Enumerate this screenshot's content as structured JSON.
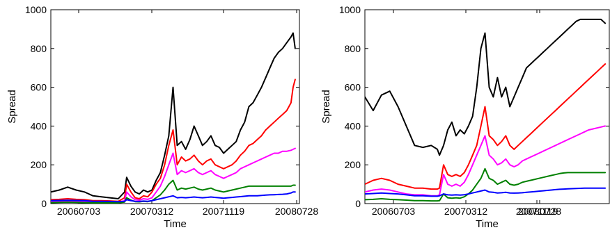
{
  "chart_data": [
    {
      "type": "line",
      "xlabel": "Time",
      "ylabel": "Spread",
      "ylim": [
        0,
        1000
      ],
      "yticks": [
        "0",
        "200",
        "400",
        "600",
        "800",
        "1000"
      ],
      "xticks": [
        "20060703",
        "20070312",
        "20071119",
        "20080728"
      ],
      "grid": false,
      "x_index": [
        0,
        20,
        40,
        60,
        80,
        100,
        120,
        140,
        160,
        175,
        180,
        190,
        200,
        210,
        220,
        230,
        240,
        250,
        260,
        270,
        280,
        290,
        300,
        310,
        320,
        330,
        340,
        350,
        360,
        370,
        380,
        390,
        400,
        410,
        420,
        430,
        440,
        450,
        460,
        470,
        480,
        490,
        500,
        510,
        520,
        530,
        540,
        550,
        560,
        570,
        575,
        580
      ],
      "series": [
        {
          "color": "#000000",
          "values": [
            60,
            70,
            85,
            70,
            60,
            40,
            35,
            30,
            25,
            60,
            135,
            90,
            60,
            50,
            70,
            60,
            70,
            120,
            160,
            250,
            350,
            600,
            300,
            320,
            280,
            330,
            400,
            350,
            300,
            320,
            350,
            300,
            290,
            260,
            280,
            300,
            320,
            380,
            420,
            500,
            520,
            560,
            600,
            650,
            700,
            750,
            780,
            800,
            830,
            860,
            880,
            800
          ]
        },
        {
          "color": "#ff0000",
          "values": [
            20,
            22,
            25,
            22,
            20,
            15,
            15,
            14,
            12,
            30,
            100,
            60,
            30,
            25,
            40,
            35,
            60,
            100,
            130,
            200,
            300,
            380,
            200,
            240,
            220,
            230,
            250,
            220,
            200,
            220,
            230,
            200,
            190,
            180,
            190,
            200,
            220,
            250,
            270,
            300,
            310,
            330,
            350,
            380,
            400,
            420,
            440,
            460,
            480,
            520,
            600,
            640
          ]
        },
        {
          "color": "#ff00ff",
          "values": [
            10,
            12,
            14,
            12,
            10,
            8,
            8,
            8,
            7,
            15,
            60,
            35,
            20,
            18,
            25,
            22,
            30,
            60,
            90,
            140,
            200,
            260,
            150,
            170,
            160,
            170,
            180,
            160,
            150,
            160,
            170,
            150,
            140,
            130,
            140,
            150,
            160,
            180,
            190,
            200,
            210,
            220,
            230,
            240,
            250,
            260,
            260,
            270,
            270,
            275,
            280,
            285
          ]
        },
        {
          "color": "#008000",
          "values": [
            5,
            6,
            7,
            6,
            5,
            4,
            4,
            4,
            4,
            8,
            30,
            18,
            10,
            9,
            12,
            10,
            15,
            30,
            45,
            70,
            100,
            120,
            70,
            80,
            75,
            80,
            85,
            75,
            70,
            75,
            80,
            70,
            65,
            60,
            65,
            70,
            75,
            80,
            85,
            90,
            90,
            90,
            90,
            90,
            90,
            90,
            90,
            90,
            90,
            90,
            95,
            95
          ]
        },
        {
          "color": "#0000ff",
          "values": [
            15,
            16,
            17,
            16,
            15,
            12,
            12,
            11,
            10,
            12,
            20,
            15,
            12,
            11,
            13,
            12,
            15,
            20,
            25,
            30,
            35,
            40,
            30,
            32,
            30,
            32,
            34,
            32,
            30,
            32,
            34,
            32,
            30,
            28,
            30,
            32,
            34,
            36,
            38,
            40,
            40,
            40,
            42,
            44,
            45,
            46,
            47,
            48,
            50,
            55,
            60,
            60
          ]
        }
      ]
    },
    {
      "type": "line",
      "xlabel": "Time",
      "ylabel": "Spread",
      "ylim": [
        0,
        1000
      ],
      "yticks": [
        "0",
        "200",
        "400",
        "600",
        "800",
        "1000"
      ],
      "xticks": [
        "20060703",
        "20070312",
        "20071119",
        "20080728"
      ],
      "grid": false,
      "x_index": [
        0,
        20,
        40,
        60,
        80,
        100,
        120,
        140,
        160,
        175,
        180,
        190,
        200,
        210,
        220,
        230,
        240,
        250,
        260,
        270,
        280,
        290,
        300,
        310,
        320,
        330,
        340,
        350,
        360,
        370,
        380,
        390,
        400,
        410,
        420,
        430,
        440,
        450,
        460,
        470,
        480,
        490,
        500,
        510,
        520,
        530,
        540,
        550,
        560,
        570,
        575,
        580
      ],
      "series": [
        {
          "color": "#000000",
          "values": [
            550,
            480,
            560,
            580,
            500,
            400,
            300,
            290,
            300,
            280,
            250,
            300,
            380,
            420,
            350,
            380,
            360,
            400,
            450,
            600,
            800,
            880,
            600,
            550,
            650,
            550,
            600,
            500,
            550,
            600,
            650,
            700,
            720,
            740,
            760,
            780,
            800,
            820,
            840,
            860,
            880,
            900,
            920,
            940,
            950,
            950,
            950,
            950,
            950,
            950,
            940,
            930
          ]
        },
        {
          "color": "#ff0000",
          "values": [
            100,
            120,
            130,
            120,
            100,
            90,
            80,
            80,
            75,
            75,
            80,
            200,
            150,
            140,
            150,
            140,
            160,
            200,
            250,
            300,
            400,
            500,
            350,
            330,
            300,
            320,
            350,
            300,
            280,
            300,
            320,
            340,
            360,
            380,
            400,
            420,
            440,
            460,
            480,
            500,
            520,
            540,
            560,
            580,
            600,
            620,
            640,
            660,
            680,
            700,
            710,
            720
          ]
        },
        {
          "color": "#ff00ff",
          "values": [
            60,
            70,
            75,
            70,
            60,
            50,
            45,
            45,
            40,
            40,
            45,
            150,
            100,
            90,
            100,
            90,
            110,
            150,
            200,
            250,
            300,
            350,
            250,
            230,
            200,
            210,
            230,
            200,
            190,
            200,
            220,
            230,
            240,
            250,
            260,
            270,
            280,
            290,
            300,
            310,
            320,
            330,
            340,
            350,
            360,
            370,
            380,
            385,
            390,
            395,
            398,
            400
          ]
        },
        {
          "color": "#008000",
          "values": [
            20,
            22,
            25,
            22,
            20,
            18,
            15,
            15,
            14,
            14,
            15,
            50,
            30,
            28,
            30,
            28,
            35,
            50,
            70,
            100,
            130,
            180,
            130,
            120,
            100,
            110,
            120,
            100,
            95,
            100,
            110,
            115,
            120,
            125,
            130,
            135,
            140,
            145,
            150,
            155,
            158,
            160,
            160,
            160,
            160,
            160,
            160,
            160,
            160,
            160,
            160,
            160
          ]
        },
        {
          "color": "#0000ff",
          "values": [
            50,
            52,
            55,
            52,
            50,
            45,
            40,
            40,
            38,
            38,
            40,
            50,
            45,
            44,
            45,
            44,
            46,
            50,
            55,
            60,
            65,
            70,
            60,
            58,
            55,
            56,
            58,
            55,
            54,
            55,
            56,
            58,
            60,
            62,
            64,
            66,
            68,
            70,
            72,
            74,
            75,
            76,
            77,
            78,
            79,
            80,
            80,
            80,
            80,
            80,
            80,
            80
          ]
        }
      ]
    }
  ]
}
